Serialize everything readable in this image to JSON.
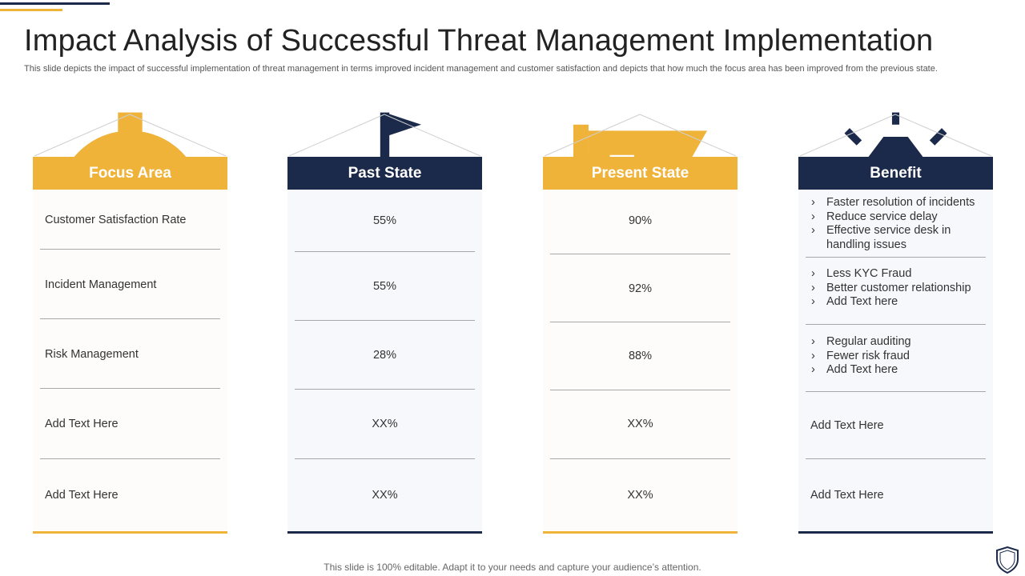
{
  "title": "Impact Analysis of Successful Threat Management Implementation",
  "subtitle": "This slide depicts the impact of successful implementation of threat management in terms improved incident management and customer satisfaction and depicts that how much the focus area has been improved from the previous state.",
  "colors": {
    "gold": "#f0b33a",
    "navy": "#1b2a4a"
  },
  "columns": {
    "focus": {
      "header": "Focus Area",
      "icon": "target-gear-icon",
      "rows": [
        "Customer Satisfaction Rate",
        "Incident Management",
        "Risk Management",
        "Add Text Here",
        "Add Text Here"
      ]
    },
    "past": {
      "header": "Past State",
      "icon": "government-building-icon",
      "rows": [
        "55%",
        "55%",
        "28%",
        "XX%",
        "XX%"
      ]
    },
    "present": {
      "header": "Present State",
      "icon": "flag-icon",
      "rows": [
        "90%",
        "92%",
        "88%",
        "XX%",
        "XX%"
      ]
    },
    "benefit": {
      "header": "Benefit",
      "icon": "hand-diamond-icon",
      "groups": [
        [
          "Faster resolution of incidents",
          "Reduce service delay",
          "Effective service desk in handling issues"
        ],
        [
          "Less KYC Fraud",
          "Better customer relationship",
          "Add Text here"
        ],
        [
          "Regular auditing",
          "Fewer risk fraud",
          "Add Text here"
        ]
      ],
      "rows": [
        "Add Text Here",
        "Add Text Here"
      ]
    }
  },
  "footer": "This slide is 100% editable. Adapt it to your needs and capture your audience’s attention.",
  "corner_icon": "shield-icon"
}
